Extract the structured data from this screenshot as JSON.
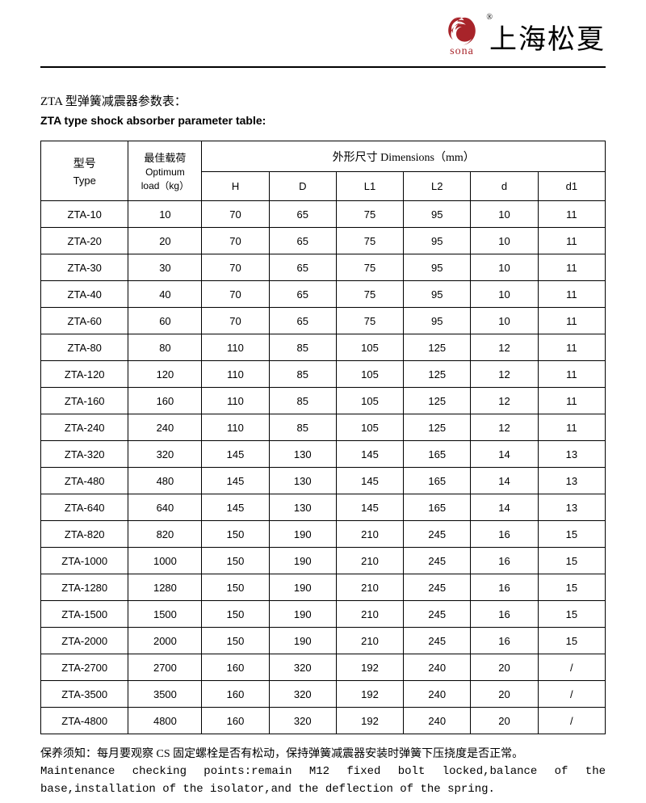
{
  "logo": {
    "sona": "sona",
    "registered": "®",
    "cn": "上海松夏",
    "mark_fill": "#a8242a"
  },
  "title": {
    "cn": "ZTA 型弹簧减震器参数表：",
    "en": "ZTA type shock absorber parameter table:"
  },
  "table": {
    "head": {
      "type_cn": "型号",
      "type_en": "Type",
      "load_cn": "最佳载荷",
      "load_en1": "Optimum",
      "load_en2": "load（kg）",
      "dim_group": "外形尺寸 Dimensions（mm）",
      "dim_cols": [
        "H",
        "D",
        "L1",
        "L2",
        "d",
        "d1"
      ]
    },
    "rows": [
      [
        "ZTA-10",
        "10",
        "70",
        "65",
        "75",
        "95",
        "10",
        "11"
      ],
      [
        "ZTA-20",
        "20",
        "70",
        "65",
        "75",
        "95",
        "10",
        "11"
      ],
      [
        "ZTA-30",
        "30",
        "70",
        "65",
        "75",
        "95",
        "10",
        "11"
      ],
      [
        "ZTA-40",
        "40",
        "70",
        "65",
        "75",
        "95",
        "10",
        "11"
      ],
      [
        "ZTA-60",
        "60",
        "70",
        "65",
        "75",
        "95",
        "10",
        "11"
      ],
      [
        "ZTA-80",
        "80",
        "110",
        "85",
        "105",
        "125",
        "12",
        "11"
      ],
      [
        "ZTA-120",
        "120",
        "110",
        "85",
        "105",
        "125",
        "12",
        "11"
      ],
      [
        "ZTA-160",
        "160",
        "110",
        "85",
        "105",
        "125",
        "12",
        "11"
      ],
      [
        "ZTA-240",
        "240",
        "110",
        "85",
        "105",
        "125",
        "12",
        "11"
      ],
      [
        "ZTA-320",
        "320",
        "145",
        "130",
        "145",
        "165",
        "14",
        "13"
      ],
      [
        "ZTA-480",
        "480",
        "145",
        "130",
        "145",
        "165",
        "14",
        "13"
      ],
      [
        "ZTA-640",
        "640",
        "145",
        "130",
        "145",
        "165",
        "14",
        "13"
      ],
      [
        "ZTA-820",
        "820",
        "150",
        "190",
        "210",
        "245",
        "16",
        "15"
      ],
      [
        "ZTA-1000",
        "1000",
        "150",
        "190",
        "210",
        "245",
        "16",
        "15"
      ],
      [
        "ZTA-1280",
        "1280",
        "150",
        "190",
        "210",
        "245",
        "16",
        "15"
      ],
      [
        "ZTA-1500",
        "1500",
        "150",
        "190",
        "210",
        "245",
        "16",
        "15"
      ],
      [
        "ZTA-2000",
        "2000",
        "150",
        "190",
        "210",
        "245",
        "16",
        "15"
      ],
      [
        "ZTA-2700",
        "2700",
        "160",
        "320",
        "192",
        "240",
        "20",
        "/"
      ],
      [
        "ZTA-3500",
        "3500",
        "160",
        "320",
        "192",
        "240",
        "20",
        "/"
      ],
      [
        "ZTA-4800",
        "4800",
        "160",
        "320",
        "192",
        "240",
        "20",
        "/"
      ]
    ]
  },
  "footer": {
    "cn": "保养须知：每月要观察 CS 固定螺栓是否有松动，保持弹簧减震器安装时弹簧下压挠度是否正常。",
    "en_l1": "Maintenance checking points:remain M12 fixed bolt locked,balance of the",
    "en_l2": "base,installation of the isolator,and the deflection of the spring."
  }
}
